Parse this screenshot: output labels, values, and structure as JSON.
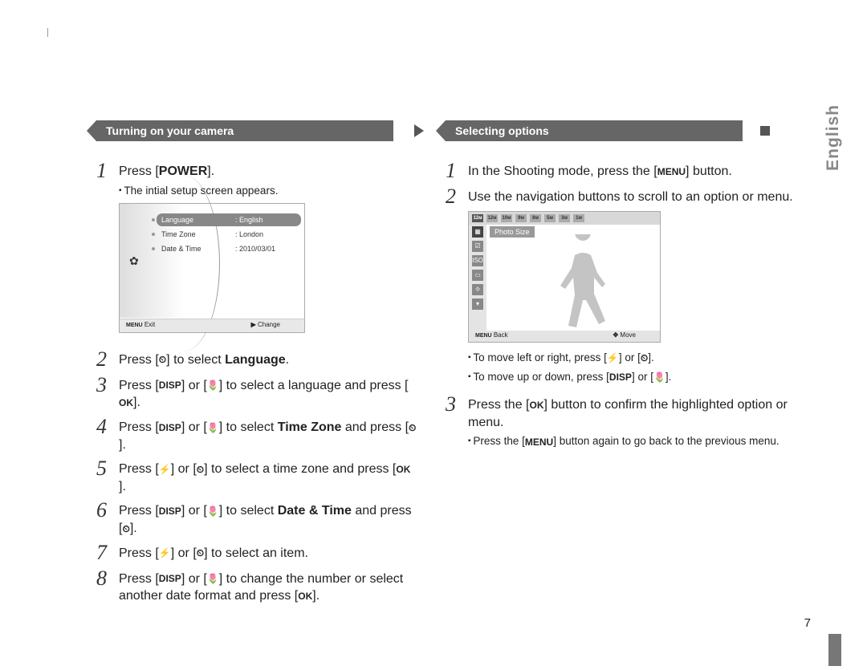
{
  "sideLabel": "English",
  "pageNumber": "7",
  "left": {
    "heading": "Turning on your camera",
    "steps": [
      {
        "n": "1",
        "html": "Press [<span class='bold'>POWER</span>].",
        "subs": [
          "The intial setup screen appears."
        ],
        "screen": "setup"
      },
      {
        "n": "2",
        "html": "Press [<span class='glyph'>⏲</span>] to select <span class='bold'>Language</span>."
      },
      {
        "n": "3",
        "html": "Press [<span class='glyph'>DISP</span>] or [<span class='glyph'>🌷</span>] to select a language and press [<span class='glyph'>OK</span>]."
      },
      {
        "n": "4",
        "html": "Press [<span class='glyph'>DISP</span>] or [<span class='glyph'>🌷</span>] to select <span class='bold'>Time Zone</span> and press [<span class='glyph'>⏲</span>]."
      },
      {
        "n": "5",
        "html": "Press [<span class='glyph'>⚡</span>] or [<span class='glyph'>⏲</span>] to select a time zone and press [<span class='glyph'>OK</span>]."
      },
      {
        "n": "6",
        "html": "Press [<span class='glyph'>DISP</span>] or [<span class='glyph'>🌷</span>] to select <span class='bold'>Date & Time</span> and press [<span class='glyph'>⏲</span>]."
      },
      {
        "n": "7",
        "html": "Press [<span class='glyph'>⚡</span>] or [<span class='glyph'>⏲</span>] to select an item."
      },
      {
        "n": "8",
        "html": "Press [<span class='glyph'>DISP</span>] or [<span class='glyph'>🌷</span>] to change the number or select another date format and press [<span class='glyph'>OK</span>]."
      }
    ],
    "setup": {
      "rows": [
        {
          "label": "Language",
          "value": ": English",
          "hl": true
        },
        {
          "label": "Time Zone",
          "value": ": London"
        },
        {
          "label": "Date & Time",
          "value": ": 2010/03/01"
        }
      ],
      "footerLeft": "Exit",
      "footerLeftIcon": "MENU",
      "footerRight": "Change",
      "footerRightIcon": "▶"
    }
  },
  "right": {
    "heading": "Selecting options",
    "steps": [
      {
        "n": "1",
        "html": "In the Shooting mode, press the [<span class='glyph'>MENU</span>] button."
      },
      {
        "n": "2",
        "html": "Use the navigation buttons to scroll to an option or menu.",
        "screen": "menu",
        "subsAfter": [
          "To move left or right, press [<span class='glyph'>⚡</span>] or [<span class='glyph'>⏲</span>].",
          "To move up or down, press [<span class='glyph'>DISP</span>] or [<span class='glyph'>🌷</span>]."
        ]
      },
      {
        "n": "3",
        "html": "Press the [<span class='glyph'>OK</span>] button to confirm the highlighted option or menu.",
        "subs": [
          "Press the [<span class='glyph'>MENU</span>] button again to go back to the previous menu."
        ]
      }
    ],
    "menu": {
      "topTiles": [
        "12м",
        "12м",
        "10м",
        "9м",
        "8м",
        "5м",
        "3м",
        "1м"
      ],
      "topHighlight": 0,
      "sideIcons": [
        "▦",
        "☑",
        "ISO",
        "▭",
        "⯑",
        "▾"
      ],
      "sideHighlight": 0,
      "label": "Photo Size",
      "footerLeftIcon": "MENU",
      "footerLeft": "Back",
      "footerRightIcon": "✥",
      "footerRight": "Move"
    }
  }
}
